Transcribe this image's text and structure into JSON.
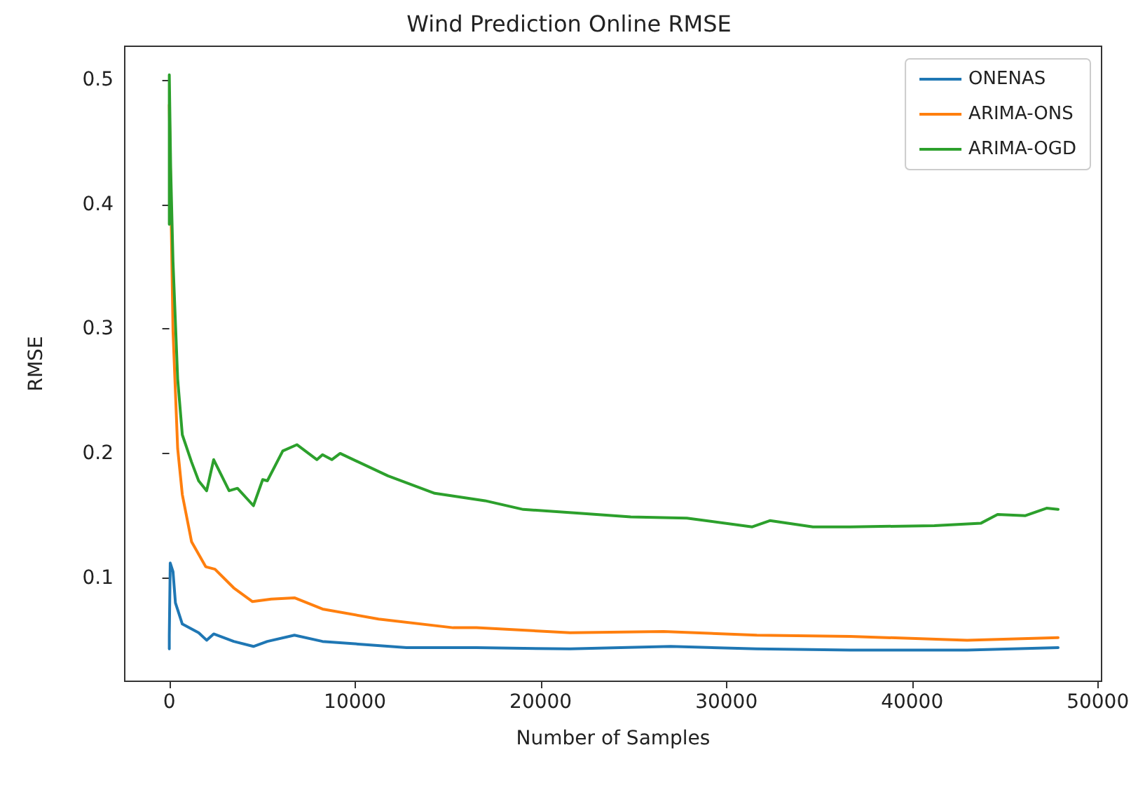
{
  "chart_data": {
    "type": "line",
    "title": "Wind Prediction Online RMSE",
    "xlabel": "Number of Samples",
    "ylabel": "RMSE",
    "xlim": [
      -2400,
      50200
    ],
    "xticks": [
      0,
      10000,
      20000,
      30000,
      40000,
      50000
    ],
    "ylim": [
      0.017,
      0.527
    ],
    "yticks": [
      0.1,
      0.2,
      0.3,
      0.4,
      0.5
    ],
    "grid": false,
    "legend": "top right",
    "marker": "none",
    "line_style": "solid",
    "series": [
      {
        "name": "ONENAS",
        "color": "#1f77b4",
        "x": [
          0,
          0,
          50,
          200,
          330,
          700,
          1580,
          2010,
          2390,
          3470,
          4530,
          5280,
          6740,
          8250,
          12780,
          16540,
          21580,
          27000,
          31640,
          36670,
          42960,
          47860
        ],
        "values": [
          0.043,
          0.054,
          0.112,
          0.105,
          0.08,
          0.063,
          0.056,
          0.05,
          0.055,
          0.049,
          0.045,
          0.049,
          0.054,
          0.049,
          0.044,
          0.044,
          0.043,
          0.045,
          0.043,
          0.042,
          0.042,
          0.044
        ]
      },
      {
        "name": "ARIMA-ONS",
        "color": "#ff7f0e",
        "x": [
          0,
          200,
          450,
          700,
          1200,
          1960,
          2460,
          3470,
          4480,
          5490,
          6740,
          8250,
          11270,
          15290,
          16540,
          21580,
          26610,
          31640,
          36670,
          42960,
          47860
        ],
        "values": [
          0.48,
          0.298,
          0.204,
          0.167,
          0.129,
          0.109,
          0.107,
          0.092,
          0.081,
          0.083,
          0.084,
          0.075,
          0.067,
          0.06,
          0.06,
          0.056,
          0.057,
          0.054,
          0.053,
          0.05,
          0.052
        ]
      },
      {
        "name": "ARIMA-OGD",
        "color": "#2ca02c",
        "x": [
          0,
          0,
          75,
          200,
          450,
          700,
          1200,
          1580,
          2010,
          2390,
          3220,
          3670,
          4530,
          5030,
          5280,
          6110,
          6870,
          7950,
          8250,
          8750,
          9200,
          11770,
          14290,
          17000,
          19060,
          22080,
          24850,
          27870,
          31390,
          32340,
          34660,
          36670,
          41200,
          43710,
          44600,
          46100,
          47240,
          47860
        ],
        "values": [
          0.384,
          0.504,
          0.429,
          0.354,
          0.26,
          0.215,
          0.193,
          0.178,
          0.17,
          0.195,
          0.17,
          0.172,
          0.158,
          0.179,
          0.178,
          0.202,
          0.207,
          0.195,
          0.199,
          0.195,
          0.2,
          0.182,
          0.168,
          0.162,
          0.155,
          0.152,
          0.149,
          0.148,
          0.141,
          0.146,
          0.141,
          0.141,
          0.142,
          0.144,
          0.151,
          0.15,
          0.156,
          0.155
        ]
      }
    ]
  }
}
